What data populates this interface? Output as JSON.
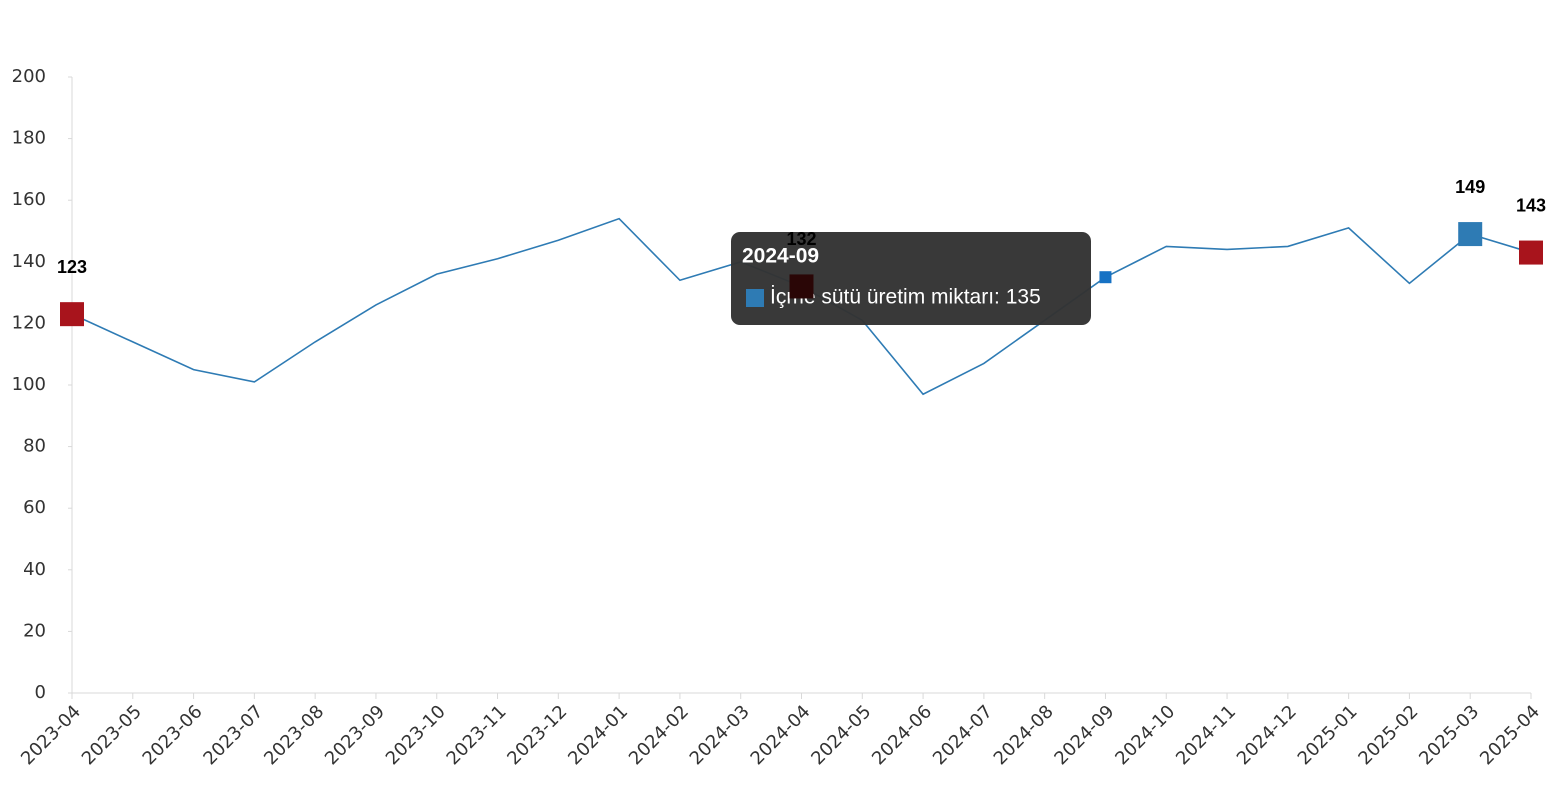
{
  "chart_data": {
    "type": "line",
    "categories": [
      "2023-04",
      "2023-05",
      "2023-06",
      "2023-07",
      "2023-08",
      "2023-09",
      "2023-10",
      "2023-11",
      "2023-12",
      "2024-01",
      "2024-02",
      "2024-03",
      "2024-04",
      "2024-05",
      "2024-06",
      "2024-07",
      "2024-08",
      "2024-09",
      "2024-10",
      "2024-11",
      "2024-12",
      "2025-01",
      "2025-02",
      "2025-03",
      "2025-04"
    ],
    "series": [
      {
        "name": "İçme sütü üretim miktarı",
        "color": "#2e7bb4",
        "values": [
          123,
          114,
          105,
          101,
          114,
          126,
          136,
          141,
          147,
          154,
          134,
          140,
          132,
          121,
          97,
          107,
          121,
          135,
          145,
          144,
          145,
          151,
          133,
          149,
          143
        ],
        "marker_colors": [
          "#a8141c",
          null,
          null,
          null,
          null,
          null,
          null,
          null,
          null,
          null,
          null,
          null,
          "#2a0606",
          null,
          null,
          null,
          null,
          null,
          null,
          null,
          null,
          null,
          null,
          "#2e7bb4",
          "#a8141c"
        ]
      }
    ],
    "ylim": [
      0,
      200
    ],
    "yticks": [
      0,
      20,
      40,
      60,
      80,
      100,
      120,
      140,
      160,
      180,
      200
    ],
    "tooltip": {
      "title": "2024-09",
      "text": "İçme sütü üretim miktarı: 135"
    }
  }
}
